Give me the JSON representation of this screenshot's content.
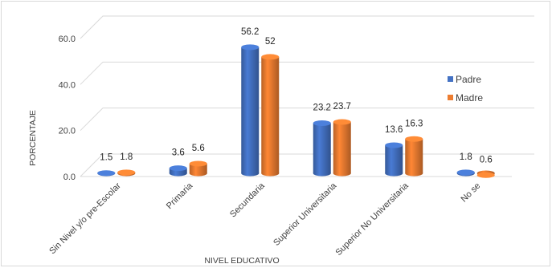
{
  "chart_data": {
    "type": "bar",
    "variant": "3d-cylinder-clustered",
    "categories": [
      "Sin Nivel y/o pre-Escolar",
      "Primaria",
      "Secundaria",
      "Superior Universitaria",
      "Superior No Universitaria",
      "No se"
    ],
    "series": [
      {
        "name": "Padre",
        "values": [
          1.5,
          3.6,
          56.2,
          23.2,
          13.6,
          1.8
        ],
        "labels": [
          "1.5",
          "3.6",
          "56.2",
          "23.2",
          "13.6",
          "1.8"
        ],
        "color": "#4472c4"
      },
      {
        "name": "Madre",
        "values": [
          1.8,
          5.6,
          52,
          23.7,
          16.3,
          0.6
        ],
        "labels": [
          "1.8",
          "5.6",
          "52",
          "23.7",
          "16.3",
          "0.6"
        ],
        "color": "#ed7d31"
      }
    ],
    "xlabel": "NIVEL EDUCATIVO",
    "ylabel": "PORCENTAJE",
    "ylim": [
      0,
      60
    ],
    "yticks": [
      "0.0",
      "20.0",
      "40.0",
      "60.0"
    ],
    "grid": true,
    "legend": "right"
  }
}
